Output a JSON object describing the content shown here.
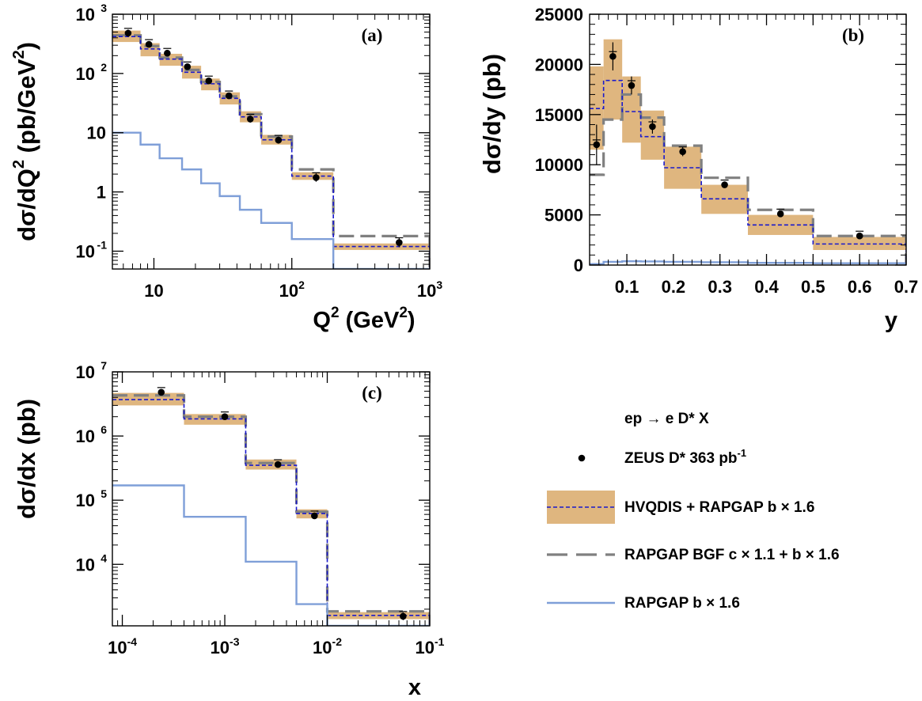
{
  "colors": {
    "band": "#dfb67f",
    "hvqdis": "#1a1acc",
    "bgf": "#808080",
    "beauty": "#7f9fd8",
    "data": "#000000"
  },
  "legend": {
    "process": "ep → e D* X",
    "entries": [
      {
        "key": "data",
        "label": "ZEUS D* 363 pb",
        "sup": "-1"
      },
      {
        "key": "band",
        "label": "HVQDIS + RAPGAP b × 1.6"
      },
      {
        "key": "bgf",
        "label": "RAPGAP BGF c × 1.1 + b × 1.6"
      },
      {
        "key": "beauty",
        "label": "RAPGAP b × 1.6"
      }
    ]
  },
  "chart_data": [
    {
      "panel": "(a)",
      "type": "line",
      "log_x": true,
      "log_y": true,
      "xlabel": {
        "base": "Q",
        "sup1": "2",
        "mid": " (GeV",
        "sup2": "2",
        "tail": ")"
      },
      "ylabel": {
        "base": "dσ/dQ",
        "sup1": "2",
        "mid": " (pb/GeV",
        "sup2": "2",
        "tail": ")"
      },
      "xlim": [
        5,
        1000
      ],
      "ylim": [
        0.05,
        1000
      ],
      "x_ticks": [
        {
          "v": 10,
          "label": "10"
        },
        {
          "v": 100,
          "label": "10",
          "sup": "2"
        },
        {
          "v": 1000,
          "label": "10",
          "sup": "3"
        }
      ],
      "y_ticks": [
        {
          "v": 0.1,
          "label": "10",
          "sup": "-1"
        },
        {
          "v": 1,
          "label": "1"
        },
        {
          "v": 10,
          "label": "10"
        },
        {
          "v": 100,
          "label": "10",
          "sup": "2"
        },
        {
          "v": 1000,
          "label": "10",
          "sup": "3"
        }
      ],
      "bin_edges": [
        5,
        8,
        11,
        16,
        22,
        30,
        42,
        60,
        100,
        200,
        1000
      ],
      "band_lo": [
        340,
        195,
        135,
        82,
        52,
        30,
        15,
        6.3,
        1.6,
        0.105
      ],
      "band_hi": [
        530,
        325,
        215,
        135,
        82,
        48,
        23,
        9.2,
        2.15,
        0.135
      ],
      "hvqdis": [
        420,
        260,
        175,
        105,
        67,
        38,
        18.5,
        7.6,
        1.85,
        0.12
      ],
      "bgf": [
        440,
        290,
        185,
        115,
        72,
        41,
        20.5,
        8.6,
        2.4,
        0.18
      ],
      "beauty": [
        10,
        6.3,
        3.7,
        2.4,
        1.4,
        0.85,
        0.5,
        0.3,
        0.16,
        0.05
      ],
      "data_points": [
        {
          "x": 6.5,
          "y": 480,
          "err": 0.06
        },
        {
          "x": 9.2,
          "y": 310,
          "err": 0.05
        },
        {
          "x": 12.5,
          "y": 220,
          "err": 0.05
        },
        {
          "x": 17.5,
          "y": 130,
          "err": 0.05
        },
        {
          "x": 25,
          "y": 75,
          "err": 0.05
        },
        {
          "x": 35,
          "y": 42,
          "err": 0.05
        },
        {
          "x": 50,
          "y": 17,
          "err": 0.06
        },
        {
          "x": 80,
          "y": 7.5,
          "err": 0.06
        },
        {
          "x": 150,
          "y": 1.75,
          "err": 0.07
        },
        {
          "x": 600,
          "y": 0.14,
          "err": 0.08
        }
      ]
    },
    {
      "panel": "(b)",
      "type": "line",
      "log_x": false,
      "log_y": false,
      "xlabel": {
        "base": "y"
      },
      "ylabel": {
        "base": "dσ/dy (pb)"
      },
      "xlim": [
        0.02,
        0.7
      ],
      "ylim": [
        0,
        25000
      ],
      "x_ticks": [
        {
          "v": 0.1,
          "label": "0.1"
        },
        {
          "v": 0.2,
          "label": "0.2"
        },
        {
          "v": 0.3,
          "label": "0.3"
        },
        {
          "v": 0.4,
          "label": "0.4"
        },
        {
          "v": 0.5,
          "label": "0.5"
        },
        {
          "v": 0.6,
          "label": "0.6"
        },
        {
          "v": 0.7,
          "label": "0.7"
        }
      ],
      "y_ticks": [
        {
          "v": 0,
          "label": "0"
        },
        {
          "v": 5000,
          "label": "5000"
        },
        {
          "v": 10000,
          "label": "10000"
        },
        {
          "v": 15000,
          "label": "15000"
        },
        {
          "v": 20000,
          "label": "20000"
        },
        {
          "v": 25000,
          "label": "25000"
        }
      ],
      "bin_edges": [
        0.02,
        0.05,
        0.09,
        0.13,
        0.18,
        0.26,
        0.36,
        0.5,
        0.7
      ],
      "band_lo": [
        11500,
        14500,
        12200,
        10500,
        7600,
        5100,
        3000,
        1500
      ],
      "band_hi": [
        19800,
        22500,
        18800,
        15400,
        11800,
        8000,
        5000,
        2800
      ],
      "hvqdis": [
        15600,
        18400,
        15300,
        12800,
        9700,
        6600,
        4000,
        2100
      ],
      "bgf": [
        9000,
        14500,
        17000,
        14700,
        11900,
        8700,
        5500,
        2900
      ],
      "beauty": [
        100,
        320,
        380,
        360,
        320,
        280,
        220,
        180
      ],
      "data_points": [
        {
          "x": 0.035,
          "y": 12000,
          "err": 2000
        },
        {
          "x": 0.07,
          "y": 20800,
          "err": 1400
        },
        {
          "x": 0.11,
          "y": 17900,
          "err": 900
        },
        {
          "x": 0.155,
          "y": 13800,
          "err": 700
        },
        {
          "x": 0.22,
          "y": 11300,
          "err": 450
        },
        {
          "x": 0.31,
          "y": 8000,
          "err": 300
        },
        {
          "x": 0.43,
          "y": 5100,
          "err": 200
        },
        {
          "x": 0.6,
          "y": 2900,
          "err": 150
        }
      ]
    },
    {
      "panel": "(c)",
      "type": "line",
      "log_x": true,
      "log_y": true,
      "xlabel": {
        "base": "x"
      },
      "ylabel": {
        "base": "dσ/dx (pb)"
      },
      "xlim": [
        8e-05,
        0.1
      ],
      "ylim": [
        1100,
        10000000
      ],
      "x_ticks": [
        {
          "v": 0.0001,
          "label": "10",
          "sup": "-4"
        },
        {
          "v": 0.001,
          "label": "10",
          "sup": "-3"
        },
        {
          "v": 0.01,
          "label": "10",
          "sup": "-2"
        },
        {
          "v": 0.1,
          "label": "10",
          "sup": "-1"
        }
      ],
      "y_ticks": [
        {
          "v": 10000,
          "label": "10",
          "sup": "4"
        },
        {
          "v": 100000,
          "label": "10",
          "sup": "5"
        },
        {
          "v": 1000000,
          "label": "10",
          "sup": "6"
        },
        {
          "v": 10000000,
          "label": "10",
          "sup": "7"
        }
      ],
      "bin_edges": [
        8e-05,
        0.0004,
        0.0016,
        0.005,
        0.01,
        0.1
      ],
      "band_lo": [
        3000000,
        1500000,
        300000,
        52000,
        1400
      ],
      "band_hi": [
        4700000,
        2200000,
        430000,
        72000,
        1800
      ],
      "hvqdis": [
        3700000,
        1850000,
        350000,
        62000,
        1600
      ],
      "bgf": [
        4300000,
        2000000,
        380000,
        66000,
        1850
      ],
      "beauty": [
        170000,
        55000,
        11000,
        2400,
        1100
      ],
      "data_points": [
        {
          "x": 0.00024,
          "y": 4800000,
          "err": 0.04
        },
        {
          "x": 0.001,
          "y": 2000000,
          "err": 0.04
        },
        {
          "x": 0.0033,
          "y": 360000,
          "err": 0.04
        },
        {
          "x": 0.0075,
          "y": 57000,
          "err": 0.05
        },
        {
          "x": 0.055,
          "y": 1550,
          "err": 0.06
        }
      ]
    }
  ]
}
